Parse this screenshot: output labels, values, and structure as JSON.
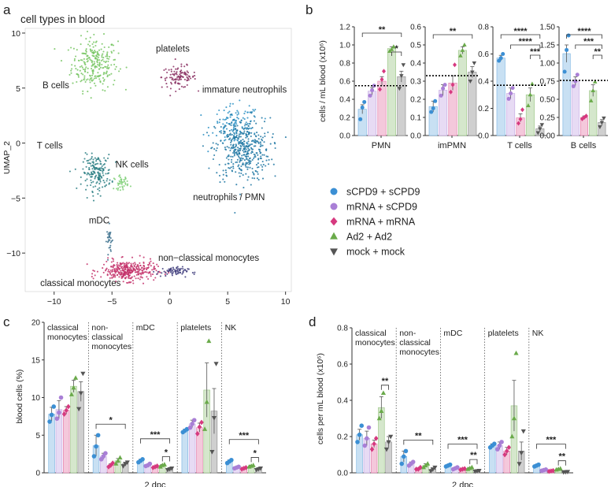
{
  "panel_labels": {
    "a": "a",
    "b": "b",
    "c": "c",
    "d": "d"
  },
  "legend": [
    {
      "label": "sCPD9 + sCPD9",
      "color": "#3b8fd4",
      "shape": "circle"
    },
    {
      "label": "mRNA + sCPD9",
      "color": "#a97fd6",
      "shape": "circle"
    },
    {
      "label": "mRNA + mRNA",
      "color": "#d6397f",
      "shape": "diamond"
    },
    {
      "label": "Ad2 + Ad2",
      "color": "#6aaa4a",
      "shape": "triangle"
    },
    {
      "label": "mock + mock",
      "color": "#555555",
      "shape": "triangle-down"
    }
  ],
  "chart_data": [
    {
      "id": "a",
      "type": "scatter",
      "title": "cell types in blood",
      "ylabel": "UMAP_2",
      "xticks": [
        "−10",
        "−5",
        "0",
        "5",
        "10"
      ],
      "yticks": [
        "10",
        "5",
        "0",
        "−5",
        "−10"
      ],
      "xlim": [
        -12.5,
        10.5
      ],
      "ylim": [
        -13.5,
        11
      ],
      "clusters": [
        {
          "label": "B cells",
          "color": "#77c663",
          "cx": -6.5,
          "cy": 7.2,
          "sx": 1.6,
          "sy": 1.9,
          "n": 260
        },
        {
          "label": "platelets",
          "color": "#8a2f62",
          "cx": 0.8,
          "cy": 6.0,
          "sx": 1.2,
          "sy": 0.8,
          "n": 110
        },
        {
          "label": "immature neutrophils",
          "color": "#2b90c4",
          "cx": 5.7,
          "cy": 1.6,
          "sx": 1.7,
          "sy": 1.5,
          "n": 120
        },
        {
          "label": "neutrophils / PMN",
          "color": "#1f77a3",
          "cx": 6.3,
          "cy": -0.6,
          "sx": 1.9,
          "sy": 2.3,
          "n": 420
        },
        {
          "label": "T cells",
          "color": "#2c7f84",
          "cx": -6.3,
          "cy": -2.7,
          "sx": 1.0,
          "sy": 1.3,
          "n": 170
        },
        {
          "label": "NK cells",
          "color": "#7ccf74",
          "cx": -4.2,
          "cy": -3.6,
          "sx": 0.5,
          "sy": 0.5,
          "n": 40
        },
        {
          "label": "mDC",
          "color": "#3a6f8c",
          "cx": -5.2,
          "cy": -8.8,
          "sx": 0.2,
          "sy": 1.0,
          "n": 30
        },
        {
          "label": "classical monocytes",
          "color": "#c4326b",
          "cx": -3.6,
          "cy": -11.6,
          "sx": 1.9,
          "sy": 0.75,
          "n": 330
        },
        {
          "label": "non−classical monocytes",
          "color": "#3c3a7a",
          "cx": 0.2,
          "cy": -11.7,
          "sx": 1.1,
          "sy": 0.35,
          "n": 70
        }
      ]
    },
    {
      "id": "b",
      "type": "bar",
      "ylabel": "cells / mL blood (x10⁶)",
      "subpanels": [
        {
          "name": "PMN",
          "ylim": [
            0,
            1.2
          ],
          "yticks": [
            "0.0",
            "0.2",
            "0.4",
            "0.6",
            "0.8",
            "1.0",
            "1.2"
          ],
          "dotted": 0.55,
          "means": [
            0.29,
            0.49,
            0.6,
            0.96,
            0.65
          ],
          "sem": [
            0.05,
            0.04,
            0.05,
            0.02,
            0.06
          ],
          "points": [
            [
              0.18,
              0.31,
              0.37
            ],
            [
              0.44,
              0.5,
              0.55
            ],
            [
              0.51,
              0.62,
              0.71
            ],
            [
              0.93,
              0.95,
              0.98
            ],
            [
              0.52,
              0.66,
              0.78
            ]
          ],
          "brackets": [
            {
              "i": 0,
              "j": 4,
              "label": "**"
            },
            {
              "i": 3,
              "j": 4,
              "label": "*"
            }
          ]
        },
        {
          "name": "imPMN",
          "ylim": [
            0,
            0.6
          ],
          "yticks": [
            "0.0",
            "0.1",
            "0.2",
            "0.3",
            "0.4",
            "0.5",
            "0.6"
          ],
          "dotted": 0.33,
          "means": [
            0.16,
            0.25,
            0.29,
            0.47,
            0.35
          ],
          "sem": [
            0.03,
            0.03,
            0.04,
            0.02,
            0.03
          ],
          "points": [
            [
              0.13,
              0.15,
              0.19
            ],
            [
              0.22,
              0.26,
              0.28
            ],
            [
              0.24,
              0.28,
              0.39
            ],
            [
              0.44,
              0.47,
              0.5
            ],
            [
              0.3,
              0.35,
              0.4
            ]
          ],
          "brackets": [
            {
              "i": 0,
              "j": 4,
              "label": "**"
            }
          ]
        },
        {
          "name": "T cells",
          "ylim": [
            0,
            0.8
          ],
          "yticks": [
            "0.0",
            "0.2",
            "0.4",
            "0.6",
            "0.8"
          ],
          "dotted": 0.37,
          "means": [
            0.57,
            0.31,
            0.13,
            0.3,
            0.05
          ],
          "sem": [
            0.02,
            0.04,
            0.03,
            0.05,
            0.02
          ],
          "points": [
            [
              0.55,
              0.57,
              0.6
            ],
            [
              0.27,
              0.31,
              0.35
            ],
            [
              0.09,
              0.12,
              0.19
            ],
            [
              0.22,
              0.3,
              0.38
            ],
            [
              0.02,
              0.05,
              0.08
            ]
          ],
          "brackets": [
            {
              "i": 0,
              "j": 4,
              "label": "****"
            },
            {
              "i": 1,
              "j": 4,
              "label": "****"
            },
            {
              "i": 3,
              "j": 4,
              "label": "***"
            }
          ]
        },
        {
          "name": "B cells",
          "ylim": [
            0,
            1.5
          ],
          "yticks": [
            "0.00",
            "0.25",
            "0.50",
            "0.75",
            "1.00",
            "1.25",
            "1.50"
          ],
          "dotted": 0.76,
          "means": [
            1.13,
            0.75,
            0.25,
            0.62,
            0.18
          ],
          "sem": [
            0.12,
            0.06,
            0.02,
            0.08,
            0.04
          ],
          "points": [
            [
              0.88,
              1.18,
              1.38
            ],
            [
              0.68,
              0.75,
              0.84
            ],
            [
              0.23,
              0.25,
              0.27
            ],
            [
              0.48,
              0.62,
              0.74
            ],
            [
              0.12,
              0.18,
              0.24
            ]
          ],
          "brackets": [
            {
              "i": 0,
              "j": 4,
              "label": "****"
            },
            {
              "i": 1,
              "j": 4,
              "label": "***"
            },
            {
              "i": 3,
              "j": 4,
              "label": "**"
            }
          ]
        }
      ]
    },
    {
      "id": "c",
      "type": "bar",
      "ylabel": "blood cells (%)",
      "xlabel": "2 dpc",
      "ylim": [
        0,
        20
      ],
      "yticks": [
        "0",
        "5",
        "10",
        "15",
        "20"
      ],
      "groups": [
        {
          "name": "classical\nmonocytes",
          "means": [
            7.8,
            8.4,
            8.3,
            11.5,
            10.8
          ],
          "sem": [
            0.9,
            1.2,
            0.5,
            0.8,
            1.3
          ],
          "points": [
            [
              6.8,
              7.7,
              8.8
            ],
            [
              7.2,
              8.0,
              10.0
            ],
            [
              7.8,
              8.3,
              8.8
            ],
            [
              10.4,
              11.3,
              12.6
            ],
            [
              8.5,
              10.6,
              13.2
            ]
          ],
          "brackets": []
        },
        {
          "name": "non-\nclassical\nmonocytes",
          "means": [
            3.6,
            2.2,
            1.0,
            1.6,
            1.2
          ],
          "sem": [
            1.4,
            0.4,
            0.2,
            0.3,
            0.2
          ],
          "points": [
            [
              2.2,
              3.5,
              5.0
            ],
            [
              1.8,
              2.2,
              2.6
            ],
            [
              0.8,
              1.0,
              1.3
            ],
            [
              1.2,
              1.6,
              2.0
            ],
            [
              0.9,
              1.2,
              1.4
            ]
          ],
          "brackets": [
            {
              "i": 0,
              "j": 4,
              "label": "*"
            }
          ]
        },
        {
          "name": "mDC",
          "means": [
            1.6,
            1.0,
            0.8,
            1.0,
            0.5
          ],
          "sem": [
            0.2,
            0.1,
            0.1,
            0.1,
            0.1
          ],
          "points": [
            [
              1.4,
              1.6,
              1.8
            ],
            [
              0.9,
              1.0,
              1.2
            ],
            [
              0.7,
              0.8,
              0.9
            ],
            [
              0.8,
              1.0,
              1.1
            ],
            [
              0.4,
              0.5,
              0.6
            ]
          ],
          "brackets": [
            {
              "i": 0,
              "j": 4,
              "label": "***"
            },
            {
              "i": 3,
              "j": 4,
              "label": "*"
            }
          ]
        },
        {
          "name": "platelets",
          "means": [
            5.6,
            6.5,
            6.0,
            11.0,
            8.2
          ],
          "sem": [
            0.2,
            0.5,
            0.6,
            3.6,
            3.0
          ],
          "points": [
            [
              5.4,
              5.6,
              5.8
            ],
            [
              6.0,
              6.5,
              7.0
            ],
            [
              5.2,
              6.1,
              6.7
            ],
            [
              5.8,
              9.4,
              17.5
            ],
            [
              2.8,
              7.3,
              14.5
            ]
          ],
          "brackets": []
        },
        {
          "name": "NK",
          "means": [
            1.5,
            0.7,
            0.6,
            0.9,
            0.5
          ],
          "sem": [
            0.2,
            0.1,
            0.1,
            0.1,
            0.1
          ],
          "points": [
            [
              1.3,
              1.5,
              1.7
            ],
            [
              0.6,
              0.7,
              0.8
            ],
            [
              0.5,
              0.6,
              0.7
            ],
            [
              0.8,
              0.9,
              1.0
            ],
            [
              0.4,
              0.5,
              0.6
            ]
          ],
          "brackets": [
            {
              "i": 0,
              "j": 4,
              "label": "***"
            },
            {
              "i": 3,
              "j": 4,
              "label": "*"
            }
          ]
        }
      ]
    },
    {
      "id": "d",
      "type": "bar",
      "ylabel": "cells per mL blood (x10⁶)",
      "xlabel": "2 dpc",
      "ylim": [
        0,
        0.8
      ],
      "yticks": [
        "0.0",
        "0.2",
        "0.4",
        "0.6",
        "0.8"
      ],
      "groups": [
        {
          "name": "classical\nmonocytes",
          "means": [
            0.21,
            0.19,
            0.16,
            0.36,
            0.17
          ],
          "sem": [
            0.03,
            0.04,
            0.02,
            0.06,
            0.03
          ],
          "points": [
            [
              0.17,
              0.21,
              0.26
            ],
            [
              0.15,
              0.19,
              0.25
            ],
            [
              0.13,
              0.16,
              0.19
            ],
            [
              0.3,
              0.34,
              0.44
            ],
            [
              0.13,
              0.17,
              0.2
            ]
          ],
          "brackets": [
            {
              "i": 3,
              "j": 4,
              "label": "**"
            }
          ]
        },
        {
          "name": "non-\nclassical\nmonocytes",
          "means": [
            0.09,
            0.05,
            0.02,
            0.04,
            0.02
          ],
          "sem": [
            0.03,
            0.01,
            0.005,
            0.01,
            0.005
          ],
          "points": [
            [
              0.05,
              0.09,
              0.12
            ],
            [
              0.04,
              0.05,
              0.06
            ],
            [
              0.02,
              0.02,
              0.03
            ],
            [
              0.03,
              0.04,
              0.05
            ],
            [
              0.01,
              0.02,
              0.03
            ]
          ],
          "brackets": [
            {
              "i": 0,
              "j": 4,
              "label": "**"
            }
          ]
        },
        {
          "name": "mDC",
          "means": [
            0.04,
            0.025,
            0.02,
            0.025,
            0.01
          ],
          "sem": [
            0.005,
            0.005,
            0.003,
            0.004,
            0.002
          ],
          "points": [
            [
              0.035,
              0.04,
              0.045
            ],
            [
              0.02,
              0.025,
              0.03
            ],
            [
              0.017,
              0.02,
              0.023
            ],
            [
              0.02,
              0.025,
              0.03
            ],
            [
              0.008,
              0.01,
              0.012
            ]
          ],
          "brackets": [
            {
              "i": 0,
              "j": 4,
              "label": "***"
            },
            {
              "i": 3,
              "j": 4,
              "label": "**"
            }
          ]
        },
        {
          "name": "platelets",
          "means": [
            0.15,
            0.15,
            0.12,
            0.37,
            0.12
          ],
          "sem": [
            0.01,
            0.02,
            0.02,
            0.14,
            0.05
          ],
          "points": [
            [
              0.14,
              0.15,
              0.16
            ],
            [
              0.13,
              0.15,
              0.17
            ],
            [
              0.1,
              0.12,
              0.14
            ],
            [
              0.2,
              0.3,
              0.66
            ],
            [
              0.05,
              0.11,
              0.23
            ]
          ],
          "brackets": []
        },
        {
          "name": "NK",
          "means": [
            0.04,
            0.015,
            0.01,
            0.02,
            0.005
          ],
          "sem": [
            0.005,
            0.003,
            0.002,
            0.003,
            0.001
          ],
          "points": [
            [
              0.035,
              0.04,
              0.045
            ],
            [
              0.012,
              0.015,
              0.018
            ],
            [
              0.008,
              0.01,
              0.012
            ],
            [
              0.017,
              0.02,
              0.023
            ],
            [
              0.004,
              0.005,
              0.006
            ]
          ],
          "brackets": [
            {
              "i": 0,
              "j": 4,
              "label": "***"
            },
            {
              "i": 3,
              "j": 4,
              "label": "**"
            }
          ]
        }
      ]
    }
  ]
}
